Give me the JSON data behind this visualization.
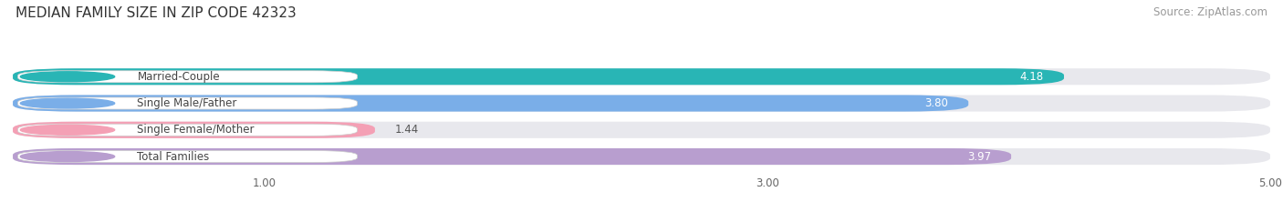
{
  "title": "MEDIAN FAMILY SIZE IN ZIP CODE 42323",
  "source": "Source: ZipAtlas.com",
  "categories": [
    "Married-Couple",
    "Single Male/Father",
    "Single Female/Mother",
    "Total Families"
  ],
  "values": [
    4.18,
    3.8,
    1.44,
    3.97
  ],
  "bar_colors": [
    "#29b5b5",
    "#7aaee8",
    "#f4a0b5",
    "#b89ecf"
  ],
  "bar_bg_color": "#e8e8ed",
  "xlim": [
    0,
    5.0
  ],
  "xticks": [
    1.0,
    3.0,
    5.0
  ],
  "xtick_labels": [
    "1.00",
    "3.00",
    "5.00"
  ],
  "label_color": "#444444",
  "value_color_inside": "#ffffff",
  "value_color_outside": "#555555",
  "title_fontsize": 11,
  "source_fontsize": 8.5,
  "label_fontsize": 8.5,
  "value_fontsize": 8.5,
  "background_color": "#ffffff",
  "grid_color": "#ffffff"
}
